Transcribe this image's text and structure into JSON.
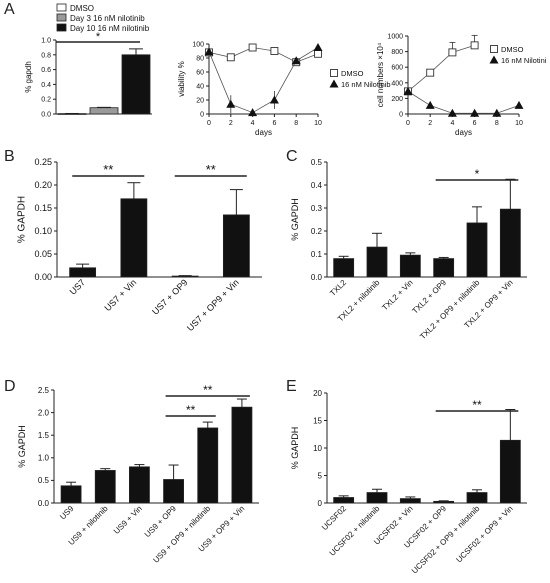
{
  "panels": {
    "A": "A",
    "B": "B",
    "C": "C",
    "D": "D",
    "E": "E"
  },
  "chart_data": [
    {
      "id": "A1",
      "type": "bar",
      "ylabel": "% gapdh",
      "ylim": [
        0,
        1.0
      ],
      "yticks": [
        "0.0",
        "0.2",
        "0.4",
        "0.6",
        "0.8",
        "1.0"
      ],
      "categories": [
        "DMSO",
        "Day 3 16 nM nilotinib",
        "Day 10 16 nM nilotinib"
      ],
      "values": [
        0.005,
        0.085,
        0.8
      ],
      "errors": [
        0.002,
        0.005,
        0.08
      ],
      "colors": [
        "#ffffff",
        "#9a9a9a",
        "#111111"
      ],
      "legend": [
        "DMSO",
        "Day 3 16 nM nilotinib",
        "Day 10 16 nM nilotinib"
      ],
      "sig": [
        {
          "from": 0,
          "to": 2,
          "label": "*"
        }
      ]
    },
    {
      "id": "A2",
      "type": "line",
      "xlabel": "days",
      "ylabel": "viability %",
      "xlim": [
        0,
        10
      ],
      "ylim": [
        0,
        100
      ],
      "xticks": [
        "0",
        "2",
        "4",
        "6",
        "8",
        "10"
      ],
      "yticks": [
        "0",
        "20",
        "40",
        "60",
        "80",
        "100"
      ],
      "legend": [
        "DMSO",
        "16 nM Nilotinib"
      ],
      "series": [
        {
          "name": "DMSO",
          "marker": "square",
          "x": [
            0,
            2,
            4,
            6,
            8,
            10
          ],
          "y": [
            88,
            81,
            95,
            90,
            74,
            86
          ]
        },
        {
          "name": "16 nM Nilotinib",
          "marker": "triangle",
          "x": [
            0,
            2,
            4,
            6,
            8,
            10
          ],
          "y": [
            89,
            14,
            2,
            20,
            76,
            95
          ]
        }
      ]
    },
    {
      "id": "A3",
      "type": "line",
      "xlabel": "days",
      "ylabel": "cell numbers ×10⁴",
      "xlim": [
        0,
        10
      ],
      "ylim": [
        0,
        1000
      ],
      "xticks": [
        "0",
        "2",
        "4",
        "6",
        "8",
        "10"
      ],
      "yticks": [
        "0",
        "200",
        "400",
        "600",
        "800",
        "1000"
      ],
      "legend": [
        "DMSO",
        "16 nM Nilotini"
      ],
      "series": [
        {
          "name": "DMSO",
          "marker": "square",
          "x": [
            0,
            2,
            4,
            6
          ],
          "y": [
            290,
            530,
            790,
            880
          ]
        },
        {
          "name": "16 nM Nilotini",
          "marker": "triangle",
          "x": [
            0,
            2,
            4,
            6,
            8,
            10
          ],
          "y": [
            290,
            110,
            10,
            10,
            10,
            110
          ]
        }
      ]
    },
    {
      "id": "B",
      "type": "bar",
      "ylabel": "% GAPDH",
      "ylim": [
        0,
        0.25
      ],
      "yticks": [
        "0.00",
        "0.05",
        "0.10",
        "0.15",
        "0.20",
        "0.25"
      ],
      "categories": [
        "US7",
        "US7 + Vin",
        "US7 + OP9",
        "US7 + OP9 + Vin"
      ],
      "values": [
        0.02,
        0.17,
        0.002,
        0.135
      ],
      "errors": [
        0.008,
        0.035,
        0.001,
        0.055
      ],
      "sig": [
        {
          "from": 0,
          "to": 1,
          "label": "**"
        },
        {
          "from": 2,
          "to": 3,
          "label": "**"
        }
      ]
    },
    {
      "id": "C",
      "type": "bar",
      "ylabel": "% GAPDH",
      "ylim": [
        0,
        0.5
      ],
      "yticks": [
        "0.0",
        "0.1",
        "0.2",
        "0.3",
        "0.4",
        "0.5"
      ],
      "categories": [
        "TXL2",
        "TXL2 + nilotinib",
        "TXL2 + Vin",
        "TXL2 + OP9",
        "TXL2 + OP9 + nilotinib",
        "TXL2 + OP9 + Vin"
      ],
      "values": [
        0.08,
        0.13,
        0.095,
        0.08,
        0.235,
        0.295
      ],
      "errors": [
        0.01,
        0.06,
        0.01,
        0.005,
        0.07,
        0.13
      ],
      "sig": [
        {
          "from": 3,
          "to": 5,
          "label": "*"
        }
      ]
    },
    {
      "id": "D",
      "type": "bar",
      "ylabel": "% GAPDH",
      "ylim": [
        0,
        2.5
      ],
      "yticks": [
        "0.0",
        "0.5",
        "1.0",
        "1.5",
        "2.0",
        "2.5"
      ],
      "categories": [
        "US9",
        "US9 + nilotinib",
        "US9 + Vin",
        "US9 + OP9",
        "US9 + OP9 + nilotinib",
        "US9 + OP9 + Vin"
      ],
      "values": [
        0.38,
        0.72,
        0.8,
        0.52,
        1.66,
        2.12
      ],
      "errors": [
        0.08,
        0.04,
        0.05,
        0.32,
        0.13,
        0.18
      ],
      "sig": [
        {
          "from": 3,
          "to": 4,
          "label": "**"
        },
        {
          "from": 3,
          "to": 5,
          "label": "**"
        }
      ]
    },
    {
      "id": "E",
      "type": "bar",
      "ylabel": "% GAPDH",
      "ylim": [
        0,
        20
      ],
      "yticks": [
        "0",
        "5",
        "10",
        "15",
        "20"
      ],
      "categories": [
        "UCSF02",
        "UCSF02 + nilotinib",
        "UCSF02 + Vin",
        "UCSF02 + OP9",
        "UCSF02 + OP9 + nilotinib",
        "UCSF02 + OP9 + Vin"
      ],
      "values": [
        1.0,
        1.9,
        0.8,
        0.3,
        1.9,
        11.4
      ],
      "errors": [
        0.3,
        0.6,
        0.3,
        0.1,
        0.5,
        5.6
      ],
      "sig": [
        {
          "from": 3,
          "to": 5,
          "label": "**"
        }
      ]
    }
  ]
}
